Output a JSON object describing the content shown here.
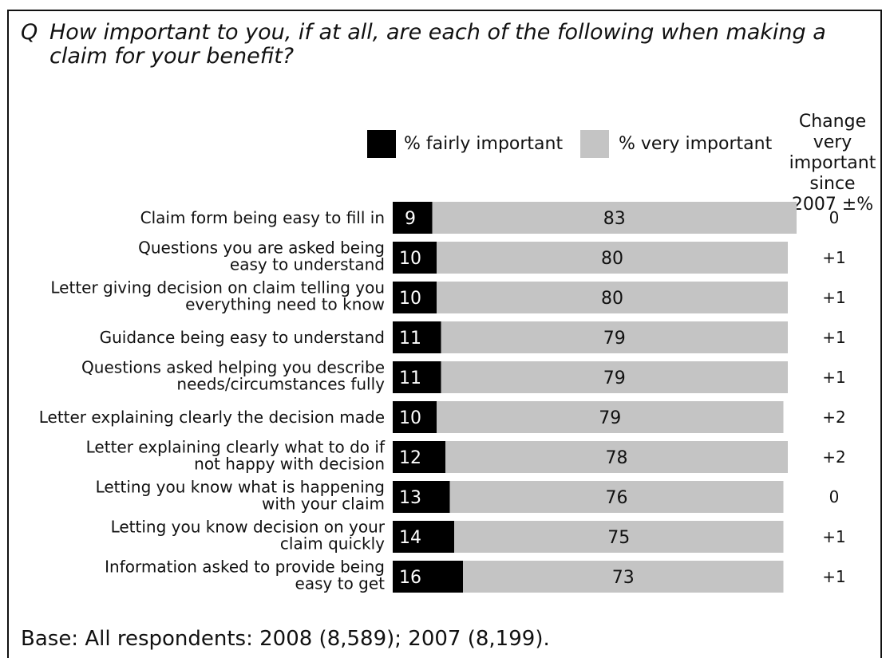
{
  "question": {
    "marker": "Q",
    "text": "How important to you, if at all, are each of the following when making a claim for your benefit?"
  },
  "legend": [
    {
      "label": "% fairly important",
      "color": "#000000"
    },
    {
      "label": "% very important",
      "color": "#c4c4c4"
    }
  ],
  "change_header": [
    "Change",
    "very",
    "important",
    "since",
    "2007 ±%"
  ],
  "base_note": "Base: All respondents: 2008 (8,589); 2007 (8,199).",
  "chart_data": {
    "type": "bar",
    "orientation": "horizontal",
    "stacked": true,
    "categories": [
      [
        "Claim form being easy to fill in"
      ],
      [
        "Questions you are asked being",
        "easy to understand"
      ],
      [
        "Letter giving decision on claim telling you",
        "everything need to know"
      ],
      [
        "Guidance being easy to understand"
      ],
      [
        "Questions asked helping you describe",
        "needs/circumstances fully"
      ],
      [
        "Letter explaining clearly the decision made"
      ],
      [
        "Letter explaining clearly what to do if",
        "not happy with decision"
      ],
      [
        "Letting you know what is happening",
        "with your claim"
      ],
      [
        "Letting you know decision on your",
        "claim quickly"
      ],
      [
        "Information asked to provide being",
        "easy to get"
      ]
    ],
    "series": [
      {
        "name": "% fairly important",
        "color": "#000000",
        "label_color": "#ffffff",
        "values": [
          9,
          10,
          10,
          11,
          11,
          10,
          12,
          13,
          14,
          16
        ]
      },
      {
        "name": "% very important",
        "color": "#c4c4c4",
        "label_color": "#111111",
        "values": [
          83,
          80,
          80,
          79,
          79,
          79,
          78,
          76,
          75,
          73
        ]
      }
    ],
    "change_since_2007": [
      "0",
      "+1",
      "+1",
      "+1",
      "+1",
      "+2",
      "+2",
      "0",
      "+1",
      "+1"
    ]
  }
}
